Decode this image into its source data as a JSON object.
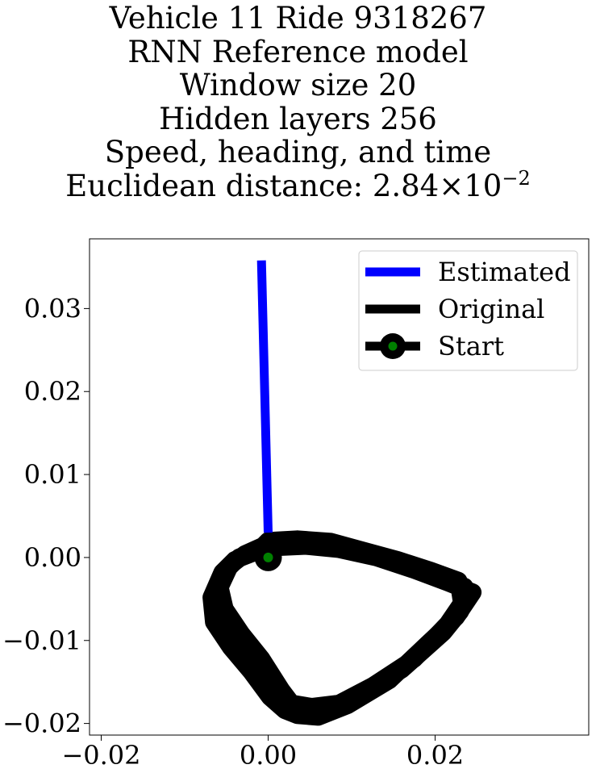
{
  "title": {
    "lines": [
      "Vehicle 11 Ride 9318267",
      "RNN Reference model",
      "Window size 20",
      "Hidden layers 256",
      "Speed, heading, and time"
    ],
    "distance_label": "Euclidean distance: 2.84",
    "distance_times": "×",
    "distance_base": "10",
    "distance_exponent": "−2"
  },
  "chart_data": {
    "type": "line",
    "title": "Vehicle 11 Ride 9318267 / RNN Reference model / Window size 20 / Hidden layers 256 / Speed, heading, and time / Euclidean distance: 2.84×10^-2",
    "xlabel": "",
    "ylabel": "",
    "xlim": [
      -0.0214,
      0.0384
    ],
    "ylim": [
      -0.0214,
      0.0384
    ],
    "xticks": [
      -0.02,
      0.0,
      0.02
    ],
    "xtick_labels": [
      "−0.02",
      "0.00",
      "0.02"
    ],
    "yticks": [
      -0.02,
      -0.01,
      0.0,
      0.01,
      0.02,
      0.03
    ],
    "ytick_labels": [
      "−0.02",
      "−0.01",
      "0.00",
      "0.01",
      "0.02",
      "0.03"
    ],
    "grid": false,
    "legend_position": "top-right",
    "series": [
      {
        "name": "Estimated",
        "color": "#0000ff",
        "x": [
          0.0,
          -0.0008
        ],
        "y": [
          0.003,
          0.0358
        ]
      },
      {
        "name": "Original",
        "color": "#000000",
        "x": [
          0.0,
          0.004,
          0.008,
          0.012,
          0.016,
          0.02,
          0.0235,
          0.023,
          0.021,
          0.016,
          0.011,
          0.007,
          0.004,
          0.0022,
          0.001,
          -0.0015,
          -0.004,
          -0.006,
          -0.0065,
          -0.005,
          -0.0035,
          -0.001,
          0.0
        ],
        "y": [
          0.0015,
          0.0018,
          0.0015,
          0.0005,
          -0.0008,
          -0.0022,
          -0.0035,
          -0.0065,
          -0.009,
          -0.0135,
          -0.0165,
          -0.0185,
          -0.0187,
          -0.0182,
          -0.0165,
          -0.013,
          -0.01,
          -0.007,
          -0.0042,
          -0.0015,
          0.0,
          0.001,
          0.0015
        ],
        "loops_x": [
          [
            0.0,
            0.0045,
            0.0085,
            0.013,
            0.0175,
            0.0215,
            0.0245,
            0.0225,
            0.019,
            0.0145,
            0.0095,
            0.006,
            0.0035,
            0.002,
            0.0002,
            -0.002,
            -0.0045,
            -0.0065,
            -0.0068,
            -0.0055,
            -0.004,
            -0.0012,
            0.0
          ],
          [
            0.0,
            0.0035,
            0.0075,
            0.0115,
            0.0155,
            0.0195,
            0.0228,
            0.0232,
            0.0215,
            0.0175,
            0.0125,
            0.0085,
            0.0052,
            0.0028,
            0.0016,
            -0.0008,
            -0.0032,
            -0.0052,
            -0.0058,
            -0.0046,
            -0.0028,
            -0.0006,
            0.0
          ]
        ],
        "loops_y": [
          [
            0.0012,
            0.0014,
            0.001,
            0.0,
            -0.0015,
            -0.003,
            -0.0042,
            -0.0072,
            -0.0105,
            -0.0148,
            -0.0178,
            -0.0192,
            -0.019,
            -0.0184,
            -0.0168,
            -0.0138,
            -0.0108,
            -0.0078,
            -0.0048,
            -0.0018,
            -0.0003,
            0.0008,
            0.0012
          ],
          [
            0.002,
            0.0022,
            0.0019,
            0.0008,
            -0.0003,
            -0.0016,
            -0.0028,
            -0.0055,
            -0.008,
            -0.0122,
            -0.0155,
            -0.0176,
            -0.018,
            -0.0176,
            -0.016,
            -0.0122,
            -0.0092,
            -0.0062,
            -0.0036,
            -0.001,
            0.0004,
            0.0014,
            0.002
          ]
        ]
      },
      {
        "name": "Start",
        "color": "#000000",
        "marker_face": "#008000",
        "x": [
          0.0
        ],
        "y": [
          0.0
        ]
      }
    ]
  }
}
